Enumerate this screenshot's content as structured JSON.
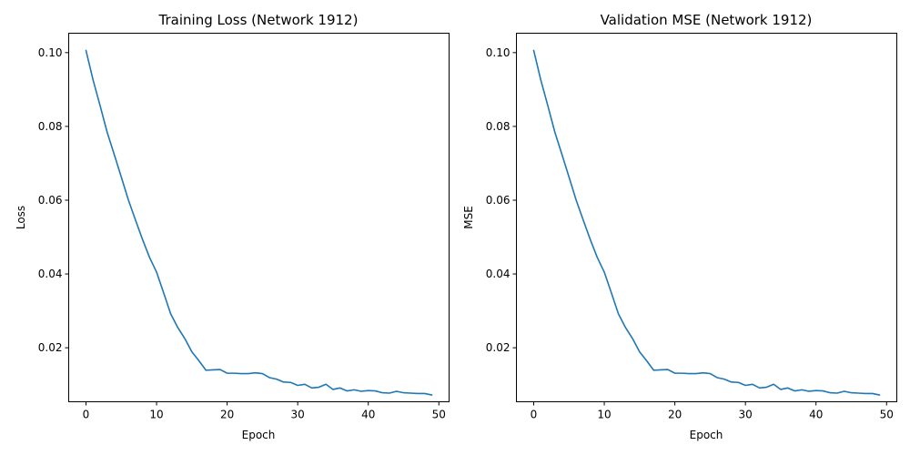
{
  "chart_data": [
    {
      "type": "line",
      "title": "Training Loss (Network 1912)",
      "xlabel": "Epoch",
      "ylabel": "Loss",
      "xlim": [
        -2.45,
        51.45
      ],
      "ylim": [
        0.00536,
        0.10526
      ],
      "xticks": [
        "0",
        "10",
        "20",
        "30",
        "40",
        "50"
      ],
      "xtick_values": [
        0,
        10,
        20,
        30,
        40,
        50
      ],
      "yticks": [
        "0.02",
        "0.04",
        "0.06",
        "0.08",
        "0.10"
      ],
      "ytick_values": [
        0.02,
        0.04,
        0.06,
        0.08,
        0.1
      ],
      "grid": false,
      "color": "#1f77b4",
      "series": [
        {
          "x": [
            0,
            1,
            2,
            3,
            4,
            5,
            6,
            7,
            8,
            9,
            10,
            11,
            12,
            13,
            14,
            15,
            16,
            17,
            18,
            19,
            20,
            21,
            22,
            23,
            24,
            25,
            26,
            27,
            28,
            29,
            30,
            31,
            32,
            33,
            34,
            35,
            36,
            37,
            38,
            39,
            40,
            41,
            42,
            43,
            44,
            45,
            46,
            47,
            48,
            49
          ],
          "values": [
            0.1006,
            0.0926,
            0.0856,
            0.0784,
            0.0724,
            0.0663,
            0.0601,
            0.0547,
            0.0494,
            0.0445,
            0.0405,
            0.0349,
            0.0292,
            0.0255,
            0.0225,
            0.0189,
            0.0165,
            0.0139,
            0.014,
            0.0141,
            0.0131,
            0.0131,
            0.013,
            0.013,
            0.0132,
            0.013,
            0.0119,
            0.0115,
            0.0107,
            0.0106,
            0.0098,
            0.0101,
            0.0091,
            0.0093,
            0.0101,
            0.0087,
            0.0091,
            0.0083,
            0.0086,
            0.0082,
            0.0084,
            0.0083,
            0.0078,
            0.0077,
            0.0082,
            0.0078,
            0.0077,
            0.0076,
            0.0076,
            0.0072
          ]
        }
      ]
    },
    {
      "type": "line",
      "title": "Validation MSE (Network 1912)",
      "xlabel": "Epoch",
      "ylabel": "MSE",
      "xlim": [
        -2.45,
        51.45
      ],
      "ylim": [
        0.00536,
        0.10526
      ],
      "xticks": [
        "0",
        "10",
        "20",
        "30",
        "40",
        "50"
      ],
      "xtick_values": [
        0,
        10,
        20,
        30,
        40,
        50
      ],
      "yticks": [
        "0.02",
        "0.04",
        "0.06",
        "0.08",
        "0.10"
      ],
      "ytick_values": [
        0.02,
        0.04,
        0.06,
        0.08,
        0.1
      ],
      "grid": false,
      "color": "#1f77b4",
      "series": [
        {
          "x": [
            0,
            1,
            2,
            3,
            4,
            5,
            6,
            7,
            8,
            9,
            10,
            11,
            12,
            13,
            14,
            15,
            16,
            17,
            18,
            19,
            20,
            21,
            22,
            23,
            24,
            25,
            26,
            27,
            28,
            29,
            30,
            31,
            32,
            33,
            34,
            35,
            36,
            37,
            38,
            39,
            40,
            41,
            42,
            43,
            44,
            45,
            46,
            47,
            48,
            49
          ],
          "values": [
            0.1006,
            0.0926,
            0.0856,
            0.0784,
            0.0724,
            0.0663,
            0.0601,
            0.0547,
            0.0494,
            0.0445,
            0.0405,
            0.0349,
            0.0292,
            0.0255,
            0.0225,
            0.0189,
            0.0165,
            0.0139,
            0.014,
            0.0141,
            0.0131,
            0.0131,
            0.013,
            0.013,
            0.0132,
            0.013,
            0.0119,
            0.0115,
            0.0107,
            0.0106,
            0.0098,
            0.0101,
            0.0091,
            0.0093,
            0.0101,
            0.0087,
            0.0091,
            0.0083,
            0.0086,
            0.0082,
            0.0084,
            0.0083,
            0.0078,
            0.0077,
            0.0082,
            0.0078,
            0.0077,
            0.0076,
            0.0076,
            0.0072
          ]
        }
      ]
    }
  ]
}
